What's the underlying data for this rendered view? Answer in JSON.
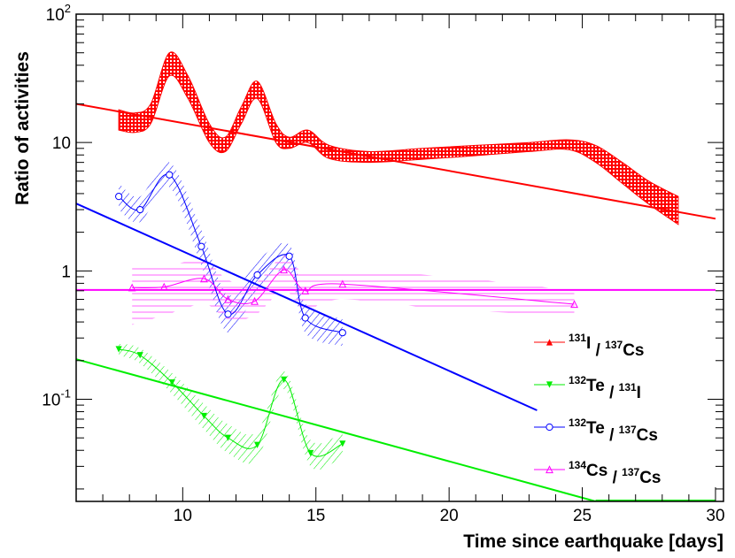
{
  "chart_data": {
    "type": "scatter",
    "xlabel": "Time since earthquake [days]",
    "ylabel": "Ratio of activities",
    "xlim": [
      6,
      30.3
    ],
    "ylim": [
      0.016,
      100
    ],
    "yscale": "log",
    "x_ticks": [
      {
        "value": 10,
        "label": "10"
      },
      {
        "value": 15,
        "label": "15"
      },
      {
        "value": 20,
        "label": "20"
      },
      {
        "value": 25,
        "label": "25"
      },
      {
        "value": 30,
        "label": "30"
      }
    ],
    "y_ticks": [
      {
        "value": 100,
        "label": "10",
        "sup": "2"
      },
      {
        "value": 10,
        "label": "10",
        "sup": ""
      },
      {
        "value": 1,
        "label": "1",
        "sup": ""
      },
      {
        "value": 0.1,
        "label": "10",
        "sup": "-1"
      }
    ],
    "legend_position": "lower-right",
    "series": [
      {
        "name": "I-131 / Cs-137",
        "legend": {
          "sup1": "131",
          "sym1": "I",
          "sep": " / ",
          "sup2": "137",
          "sym2": "Cs"
        },
        "color": "#ff0000",
        "marker": "triangle-up-filled",
        "band_style": "dense",
        "fit": {
          "x0": 6,
          "y0": 20,
          "x1": 30,
          "y1": 2.55
        },
        "points": [],
        "band": [
          {
            "x": 7.6,
            "lo": 12.5,
            "hi": 18
          },
          {
            "x": 8.2,
            "lo": 12,
            "hi": 17
          },
          {
            "x": 8.8,
            "lo": 14,
            "hi": 20
          },
          {
            "x": 9.5,
            "lo": 33,
            "hi": 50
          },
          {
            "x": 10.2,
            "lo": 22,
            "hi": 33
          },
          {
            "x": 11.0,
            "lo": 10,
            "hi": 14
          },
          {
            "x": 11.6,
            "lo": 8.5,
            "hi": 11
          },
          {
            "x": 12.2,
            "lo": 14,
            "hi": 19
          },
          {
            "x": 12.8,
            "lo": 22,
            "hi": 30
          },
          {
            "x": 13.5,
            "lo": 10,
            "hi": 14
          },
          {
            "x": 14.0,
            "lo": 9,
            "hi": 11
          },
          {
            "x": 14.7,
            "lo": 10,
            "hi": 12.5
          },
          {
            "x": 15.5,
            "lo": 7.5,
            "hi": 9.5
          },
          {
            "x": 17.0,
            "lo": 7,
            "hi": 8.5
          },
          {
            "x": 19.0,
            "lo": 7.4,
            "hi": 9.0
          },
          {
            "x": 21.0,
            "lo": 7.9,
            "hi": 9.5
          },
          {
            "x": 23.0,
            "lo": 8.5,
            "hi": 10
          },
          {
            "x": 24.5,
            "lo": 8.8,
            "hi": 10.5
          },
          {
            "x": 25.5,
            "lo": 7,
            "hi": 9.5
          },
          {
            "x": 26.5,
            "lo": 4.8,
            "hi": 7
          },
          {
            "x": 27.5,
            "lo": 3.3,
            "hi": 5.0
          },
          {
            "x": 28.6,
            "lo": 2.3,
            "hi": 3.8
          }
        ]
      },
      {
        "name": "Te-132 / I-131",
        "legend": {
          "sup1": "132",
          "sym1": "Te",
          "sep": " / ",
          "sup2": "131",
          "sym2": "I"
        },
        "color": "#00ee00",
        "marker": "triangle-down-filled",
        "band_style": "hatch",
        "fit": {
          "x0": 6,
          "y0": 0.205,
          "x1": 25.5,
          "y1": 0.016
        },
        "fit_tail": {
          "x0": 25.5,
          "x1": 30,
          "y": 0.016
        },
        "points": [
          {
            "x": 7.6,
            "y": 0.245
          },
          {
            "x": 8.4,
            "y": 0.22
          },
          {
            "x": 9.6,
            "y": 0.135
          },
          {
            "x": 10.8,
            "y": 0.074
          },
          {
            "x": 11.7,
            "y": 0.05
          },
          {
            "x": 12.8,
            "y": 0.044
          },
          {
            "x": 13.8,
            "y": 0.142
          },
          {
            "x": 14.8,
            "y": 0.038
          },
          {
            "x": 16.0,
            "y": 0.045
          }
        ],
        "band": [
          {
            "x": 7.6,
            "lo": 0.22,
            "hi": 0.27
          },
          {
            "x": 8.4,
            "lo": 0.19,
            "hi": 0.25
          },
          {
            "x": 9.6,
            "lo": 0.11,
            "hi": 0.16
          },
          {
            "x": 10.8,
            "lo": 0.058,
            "hi": 0.092
          },
          {
            "x": 11.7,
            "lo": 0.038,
            "hi": 0.064
          },
          {
            "x": 12.8,
            "lo": 0.034,
            "hi": 0.056
          },
          {
            "x": 13.8,
            "lo": 0.12,
            "hi": 0.165
          },
          {
            "x": 14.8,
            "lo": 0.03,
            "hi": 0.048
          },
          {
            "x": 16.0,
            "lo": 0.036,
            "hi": 0.055
          }
        ]
      },
      {
        "name": "Te-132 / Cs-137",
        "legend": {
          "sup1": "132",
          "sym1": "Te",
          "sep": " / ",
          "sup2": "137",
          "sym2": "Cs"
        },
        "color": "#0000ff",
        "marker": "circle-open",
        "band_style": "hatch",
        "fit": {
          "x0": 6,
          "y0": 3.35,
          "x1": 23.3,
          "y1": 0.082
        },
        "points": [
          {
            "x": 7.6,
            "y": 3.8
          },
          {
            "x": 8.4,
            "y": 3.0
          },
          {
            "x": 9.5,
            "y": 5.6
          },
          {
            "x": 10.7,
            "y": 1.55
          },
          {
            "x": 11.7,
            "y": 0.46
          },
          {
            "x": 12.8,
            "y": 0.93
          },
          {
            "x": 14.0,
            "y": 1.3
          },
          {
            "x": 14.6,
            "y": 0.43
          },
          {
            "x": 16.0,
            "y": 0.33
          }
        ],
        "band": [
          {
            "x": 7.6,
            "lo": 3.0,
            "hi": 4.8
          },
          {
            "x": 8.4,
            "lo": 2.4,
            "hi": 3.8
          },
          {
            "x": 9.5,
            "lo": 4.5,
            "hi": 7.0
          },
          {
            "x": 10.7,
            "lo": 1.1,
            "hi": 2.1
          },
          {
            "x": 11.7,
            "lo": 0.33,
            "hi": 0.65
          },
          {
            "x": 12.8,
            "lo": 0.7,
            "hi": 1.2
          },
          {
            "x": 14.0,
            "lo": 1.0,
            "hi": 1.6
          },
          {
            "x": 14.6,
            "lo": 0.33,
            "hi": 0.56
          },
          {
            "x": 16.0,
            "lo": 0.26,
            "hi": 0.42
          }
        ]
      },
      {
        "name": "Cs-134 / Cs-137",
        "legend": {
          "sup1": "134",
          "sym1": "Cs",
          "sep": " / ",
          "sup2": "137",
          "sym2": "Cs"
        },
        "color": "#ff00ff",
        "marker": "triangle-up-open",
        "band_style": "hlines",
        "fit": {
          "x0": 6,
          "y0": 0.71,
          "x1": 30,
          "y1": 0.71
        },
        "points": [
          {
            "x": 8.1,
            "y": 0.74
          },
          {
            "x": 9.3,
            "y": 0.75
          },
          {
            "x": 10.8,
            "y": 0.87
          },
          {
            "x": 11.7,
            "y": 0.6
          },
          {
            "x": 12.7,
            "y": 0.58
          },
          {
            "x": 13.8,
            "y": 1.02
          },
          {
            "x": 14.6,
            "y": 0.7
          },
          {
            "x": 16.0,
            "y": 0.79
          },
          {
            "x": 24.7,
            "y": 0.55
          }
        ],
        "band": [
          {
            "x": 8.1,
            "lo": 0.38,
            "hi": 1.15
          },
          {
            "x": 9.3,
            "lo": 0.45,
            "hi": 1.1
          },
          {
            "x": 10.8,
            "lo": 0.55,
            "hi": 1.2
          },
          {
            "x": 11.7,
            "lo": 0.42,
            "hi": 0.85
          },
          {
            "x": 12.7,
            "lo": 0.45,
            "hi": 0.8
          },
          {
            "x": 13.8,
            "lo": 0.7,
            "hi": 1.3
          },
          {
            "x": 14.6,
            "lo": 0.5,
            "hi": 0.95
          },
          {
            "x": 16.0,
            "lo": 0.6,
            "hi": 1.0
          },
          {
            "x": 20.0,
            "lo": 0.5,
            "hi": 0.9
          },
          {
            "x": 24.7,
            "lo": 0.45,
            "hi": 0.7
          }
        ]
      }
    ]
  }
}
